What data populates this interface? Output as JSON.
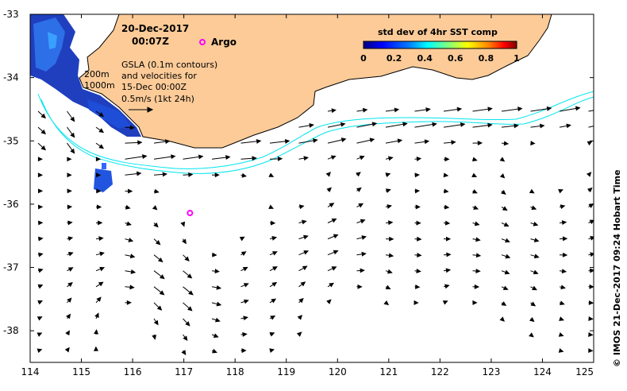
{
  "header": {
    "date": "20-Dec-2017",
    "time": "00:07Z"
  },
  "argo": {
    "label": "Argo",
    "color": "#ff00ff"
  },
  "bathymetry": {
    "label_200": "200m",
    "label_1000": "1000m",
    "color": "#00e5ee"
  },
  "gsla": {
    "line1": "GSLA (0.1m contours)",
    "line2": "and velocities for",
    "line3": "15-Dec 00:00Z",
    "scale_label": "0.5m/s (1kt 24h)"
  },
  "colorbar": {
    "title": "std dev of 4hr SST comp",
    "ticks": [
      "0",
      "0.2",
      "0.4",
      "0.6",
      "0.8",
      "1"
    ],
    "colors": [
      "#00007f",
      "#0000ff",
      "#007fff",
      "#00ffff",
      "#7fff7f",
      "#ffff00",
      "#ff7f00",
      "#ff0000",
      "#7f0000"
    ]
  },
  "axes": {
    "x_ticks": [
      "114",
      "115",
      "116",
      "117",
      "118",
      "119",
      "120",
      "121",
      "122",
      "123",
      "124",
      "125"
    ],
    "y_ticks": [
      "-33",
      "-34",
      "-35",
      "-36",
      "-37",
      "-38"
    ],
    "lon_range": [
      114,
      125
    ],
    "lat_range": [
      -38.5,
      -33
    ]
  },
  "land_color": "#fccb98",
  "argo_float": {
    "lon": 117.12,
    "lat": -36.14
  },
  "credit": "© IMOS 21-Dec-2017 09:24 Hobart Time"
}
